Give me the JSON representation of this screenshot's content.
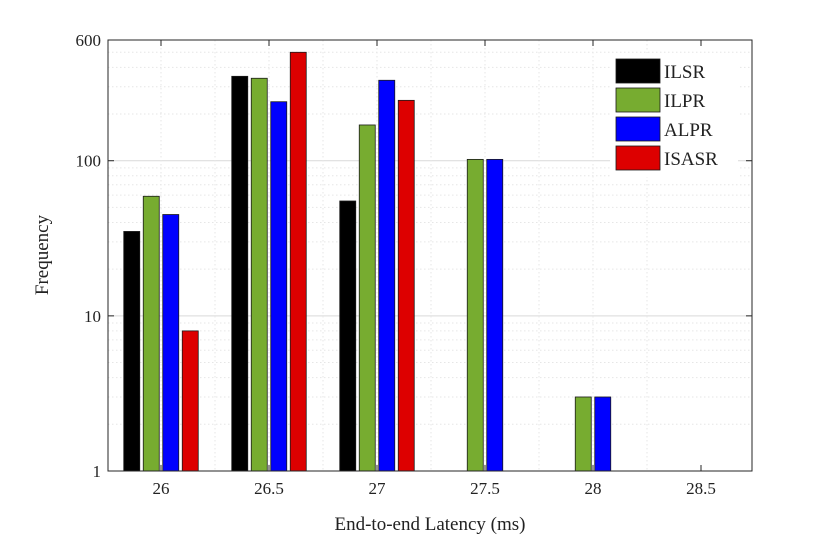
{
  "chart_data": {
    "type": "bar",
    "xlabel": "End-to-end Latency (ms)",
    "ylabel": "Frequency",
    "yscale": "log",
    "ylim": [
      1,
      600
    ],
    "yticks": [
      1,
      10,
      100,
      600
    ],
    "categories": [
      "26",
      "26.5",
      "27",
      "27.5",
      "28",
      "28.5"
    ],
    "grid": true,
    "legend_position": "top-right",
    "series": [
      {
        "name": "ILSR",
        "color": "#000000",
        "values": [
          35,
          350,
          55,
          null,
          null,
          null
        ]
      },
      {
        "name": "ILPR",
        "color": "#77ac30",
        "values": [
          59,
          340,
          170,
          102,
          3,
          null
        ]
      },
      {
        "name": "ALPR",
        "color": "#0000ff",
        "values": [
          45,
          240,
          330,
          102,
          3,
          null
        ]
      },
      {
        "name": "ISASR",
        "color": "#dd0000",
        "values": [
          8,
          500,
          245,
          null,
          null,
          null
        ]
      }
    ]
  }
}
